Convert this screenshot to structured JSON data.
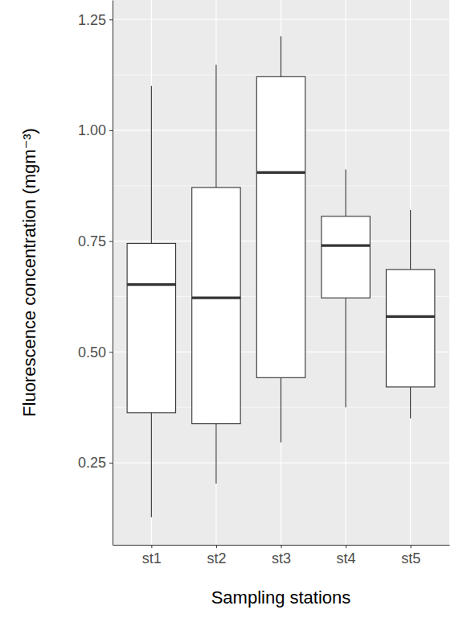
{
  "chart_data": {
    "type": "box",
    "x_label": "Sampling stations",
    "y_label": "Fluorescence concentration (mgm⁻³)",
    "categories": [
      "st1",
      "st2",
      "st3",
      "st4",
      "st5"
    ],
    "boxes": [
      {
        "min": 0.127,
        "q1": 0.363,
        "median": 0.652,
        "q3": 0.745,
        "max": 1.1
      },
      {
        "min": 0.203,
        "q1": 0.338,
        "median": 0.622,
        "q3": 0.871,
        "max": 1.148
      },
      {
        "min": 0.296,
        "q1": 0.442,
        "median": 0.905,
        "q3": 1.121,
        "max": 1.212
      },
      {
        "min": 0.375,
        "q1": 0.622,
        "median": 0.74,
        "q3": 0.806,
        "max": 0.912
      },
      {
        "min": 0.35,
        "q1": 0.421,
        "median": 0.58,
        "q3": 0.686,
        "max": 0.82
      }
    ],
    "color": "#ffffff",
    "ylim": [
      0.065,
      1.294
    ],
    "yticks": [
      {
        "value": 0.25,
        "label": "0.25"
      },
      {
        "value": 0.5,
        "label": "0.50"
      },
      {
        "value": 0.75,
        "label": "0.75"
      },
      {
        "value": 1,
        "label": "1.00"
      },
      {
        "value": 1.25,
        "label": "1.25"
      }
    ],
    "grid": true
  }
}
